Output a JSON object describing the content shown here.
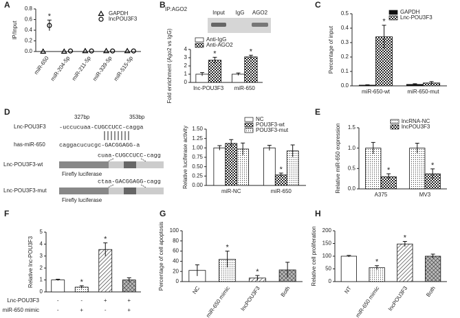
{
  "panel_labels": [
    "A",
    "B",
    "C",
    "D",
    "E",
    "F",
    "G",
    "H"
  ],
  "blot": {
    "title": "IP:AGO2",
    "lanes": [
      "Input",
      "IgG",
      "AGO2"
    ]
  },
  "diagram": {
    "lnc_label": "Lnc-POU3F3",
    "start": "327bp",
    "end": "353bp",
    "lnc_seq": "-uccucuaa-CUGCCUCC-cagga",
    "mir_label": "has-miR-650",
    "mir_seq": "caggacucucgc-GACGGAGG-a",
    "wt_label": "Lnc-POU3F3-wt",
    "wt_seq": "cuaa-CUGCCUCC-cagg",
    "wt_reporter": "Firefly luciferase",
    "mut_label": "Lnc-POU3F3-mut",
    "mut_seq": "ctaa-GACGGAGG-cagg",
    "mut_reporter": "Firefly luciferase"
  },
  "chart_data": [
    {
      "type": "dot",
      "ylabel": "IP/Input",
      "categories": [
        "miR-650",
        "miR-204-5p",
        "miR-211-5p",
        "miR-339-5p",
        "miR-515-5p"
      ],
      "ylim": [
        0,
        0.8
      ],
      "yticks": [
        {
          "value": 0,
          "label": "0.0"
        },
        0.2,
        0.4,
        0.6,
        0.8
      ],
      "legend": "upper right",
      "series": [
        {
          "name": "GAPDH",
          "marker": "triangle",
          "color": "#000000",
          "values": [
            0,
            0,
            0.01,
            0.01,
            0.01
          ]
        },
        {
          "name": "lncPOU3F3",
          "marker": "circle",
          "color": "#000000",
          "values": [
            0.49,
            0.01,
            0.01,
            0.01,
            0.01
          ],
          "errors": [
            0.1,
            null,
            null,
            null,
            null
          ],
          "annotations": [
            "*",
            null,
            null,
            null,
            null
          ]
        }
      ]
    },
    {
      "type": "bar",
      "ylabel": "Fold enrichment (Ago2 vs IgG)",
      "categories": [
        "lnc-POU3F3",
        "miR-650"
      ],
      "ylim": [
        0,
        4
      ],
      "yticks": [
        0,
        1,
        2,
        3,
        4
      ],
      "legend": "upper left",
      "series": [
        {
          "name": "Anti-IgG",
          "pattern": "none",
          "values": [
            1.0,
            1.0
          ],
          "errors": [
            0.2,
            0.15
          ],
          "annotations": [
            null,
            null
          ]
        },
        {
          "name": "Anti-AGO2",
          "pattern": "checker",
          "values": [
            2.7,
            3.1
          ],
          "errors": [
            0.35,
            0.2
          ],
          "annotations": [
            "*",
            "*"
          ]
        }
      ]
    },
    {
      "type": "bar",
      "ylabel": "Percentage of input",
      "categories": [
        "miR-650-wt",
        "miR-650-mut"
      ],
      "ylim": [
        0,
        0.5
      ],
      "yticks": [
        {
          "value": 0,
          "label": "0.0"
        },
        0.1,
        0.2,
        0.3,
        0.4,
        0.5
      ],
      "legend": "upper right",
      "series": [
        {
          "name": "GAPDH",
          "pattern": "solid",
          "values": [
            0.005,
            0.01
          ],
          "errors": [
            0.003,
            0.005
          ],
          "annotations": [
            null,
            null
          ]
        },
        {
          "name": "Lnc-POU3F3",
          "pattern": "checker",
          "values": [
            0.34,
            0.02
          ],
          "errors": [
            0.08,
            0.01
          ],
          "annotations": [
            "*",
            null
          ]
        }
      ]
    },
    {
      "type": "bar",
      "ylabel": "Relative luciferase activity",
      "categories": [
        "miR-NC",
        "miR-650"
      ],
      "ylim": [
        0,
        1.5
      ],
      "yticks": [
        {
          "value": 0,
          "label": "0.00"
        },
        0.25,
        {
          "value": 0.5,
          "label": "0.50"
        },
        0.75,
        {
          "value": 1,
          "label": "1.00"
        },
        1.25,
        {
          "value": 1.5,
          "label": "1.50"
        }
      ],
      "legend": "upper right",
      "series": [
        {
          "name": "NC",
          "pattern": "none",
          "values": [
            1.0,
            1.0
          ],
          "errors": [
            0.06,
            0.07
          ],
          "annotations": [
            null,
            null
          ]
        },
        {
          "name": "POU3F3-wt",
          "pattern": "checker",
          "values": [
            1.12,
            0.28
          ],
          "errors": [
            0.1,
            0.05
          ],
          "annotations": [
            null,
            "*"
          ]
        },
        {
          "name": "POU3F3-mut",
          "pattern": "dots",
          "values": [
            0.97,
            0.92
          ],
          "errors": [
            0.16,
            0.16
          ],
          "annotations": [
            null,
            null
          ]
        }
      ]
    },
    {
      "type": "bar",
      "ylabel": "Relative miR-650 expression",
      "categories": [
        "A375",
        "MV3"
      ],
      "ylim": [
        0,
        1.5
      ],
      "yticks": [
        {
          "value": 0,
          "label": "0.0"
        },
        0.5,
        {
          "value": 1,
          "label": "1.0"
        },
        1.5
      ],
      "legend": "upper right",
      "series": [
        {
          "name": "lncRNA-NC",
          "pattern": "dots",
          "values": [
            1.0,
            1.0
          ],
          "errors": [
            0.14,
            0.12
          ],
          "annotations": [
            null,
            null
          ]
        },
        {
          "name": "lncPOU3F3",
          "pattern": "checker",
          "values": [
            0.3,
            0.37
          ],
          "errors": [
            0.07,
            0.12
          ],
          "annotations": [
            "*",
            "*"
          ]
        }
      ]
    },
    {
      "type": "bar",
      "ylabel": "Relative lnc-POU3F3",
      "categories": [
        null,
        null,
        null,
        null
      ],
      "ylim": [
        0,
        5
      ],
      "yticks": [
        0,
        1,
        2,
        3,
        4,
        5
      ],
      "values": [
        1.0,
        0.4,
        3.55,
        1.0
      ],
      "errors": [
        0.06,
        0.12,
        0.55,
        0.18
      ],
      "annotations": [
        null,
        "*",
        "*",
        null
      ],
      "patterns": [
        "none",
        "dots",
        "hatch",
        "cross"
      ],
      "conditions": [
        {
          "name": "Lnc-POU3F3",
          "values": [
            "-",
            "-",
            "+",
            "+"
          ]
        },
        {
          "name": "miR-650 mimic",
          "values": [
            "-",
            "+",
            "-",
            "+"
          ]
        }
      ]
    },
    {
      "type": "bar",
      "ylabel": "Percentage of cell apoptosis",
      "categories": [
        "NC",
        "miR-650 mimic",
        "lncPOU3F3",
        "Both"
      ],
      "ylim": [
        0,
        100
      ],
      "yticks": [
        0,
        20,
        40,
        60,
        80,
        100
      ],
      "values": [
        22,
        44,
        7,
        23
      ],
      "errors": [
        11,
        16,
        5,
        15
      ],
      "annotations": [
        null,
        "*",
        "*",
        null
      ],
      "patterns": [
        "none",
        "dots",
        "hatch",
        "cross"
      ]
    },
    {
      "type": "bar",
      "ylabel": "Relative cell proliferation",
      "categories": [
        "NT",
        "miR-650 mimic",
        "lncPOU3F3",
        "Both"
      ],
      "ylim": [
        0,
        200
      ],
      "yticks": [
        0,
        50,
        100,
        150,
        200
      ],
      "values": [
        100,
        55,
        148,
        100
      ],
      "errors": [
        3,
        8,
        10,
        8
      ],
      "annotations": [
        null,
        "*",
        "*",
        null
      ],
      "patterns": [
        "none",
        "dots",
        "hatch",
        "cross"
      ]
    }
  ]
}
